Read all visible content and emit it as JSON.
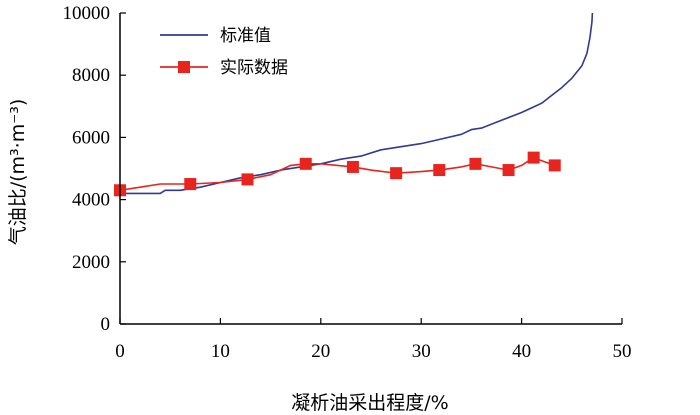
{
  "chart_data": {
    "type": "line",
    "xlabel": "凝析油采出程度/%",
    "ylabel": "气油比/(m³·m⁻³)",
    "xlim": [
      0,
      50
    ],
    "ylim": [
      0,
      10000
    ],
    "xticks": [
      0,
      10,
      20,
      30,
      40,
      50
    ],
    "yticks": [
      0,
      2000,
      4000,
      6000,
      8000,
      10000
    ],
    "x_tick_labels": [
      "0",
      "10",
      "20",
      "30",
      "40",
      "50"
    ],
    "y_tick_labels": [
      "0",
      "2000",
      "4000",
      "6000",
      "8000",
      "10000"
    ],
    "grid": false,
    "legend_position": "top-left",
    "series": [
      {
        "name": "标准值",
        "color": "#2e3b8f",
        "marker": "none",
        "x": [
          0,
          2,
          4,
          4.5,
          6,
          8,
          10,
          12,
          14,
          16,
          18,
          20,
          22,
          24,
          26,
          28,
          30,
          32,
          34,
          35,
          36,
          38,
          40,
          41,
          42,
          43,
          44,
          45,
          46,
          46.5,
          46.8,
          47,
          47.05
        ],
        "y": [
          4200,
          4200,
          4200,
          4300,
          4300,
          4400,
          4550,
          4700,
          4800,
          4950,
          5050,
          5150,
          5300,
          5400,
          5600,
          5700,
          5800,
          5950,
          6100,
          6250,
          6300,
          6550,
          6800,
          6950,
          7100,
          7350,
          7600,
          7900,
          8300,
          8700,
          9200,
          9700,
          10000
        ]
      },
      {
        "name": "实际数据",
        "color": "#e8241f",
        "marker": "square",
        "x": [
          0,
          2,
          4,
          7,
          10,
          12.7,
          15,
          17,
          18.5,
          20,
          23.2,
          25,
          27.5,
          30,
          31.8,
          34,
          35.4,
          37,
          38.7,
          40,
          41.2,
          42,
          43.3
        ],
        "y": [
          4300,
          4400,
          4500,
          4500,
          4550,
          4650,
          4800,
          5100,
          5150,
          5150,
          5050,
          4950,
          4850,
          4900,
          4950,
          5050,
          5150,
          5050,
          4950,
          5100,
          5350,
          5250,
          5100
        ],
        "marker_points": [
          {
            "x": 0,
            "y": 4300
          },
          {
            "x": 7,
            "y": 4500
          },
          {
            "x": 12.7,
            "y": 4650
          },
          {
            "x": 18.5,
            "y": 5150
          },
          {
            "x": 23.2,
            "y": 5050
          },
          {
            "x": 27.5,
            "y": 4850
          },
          {
            "x": 31.8,
            "y": 4950
          },
          {
            "x": 35.4,
            "y": 5150
          },
          {
            "x": 38.7,
            "y": 4950
          },
          {
            "x": 41.2,
            "y": 5350
          },
          {
            "x": 43.3,
            "y": 5100
          }
        ]
      }
    ]
  }
}
